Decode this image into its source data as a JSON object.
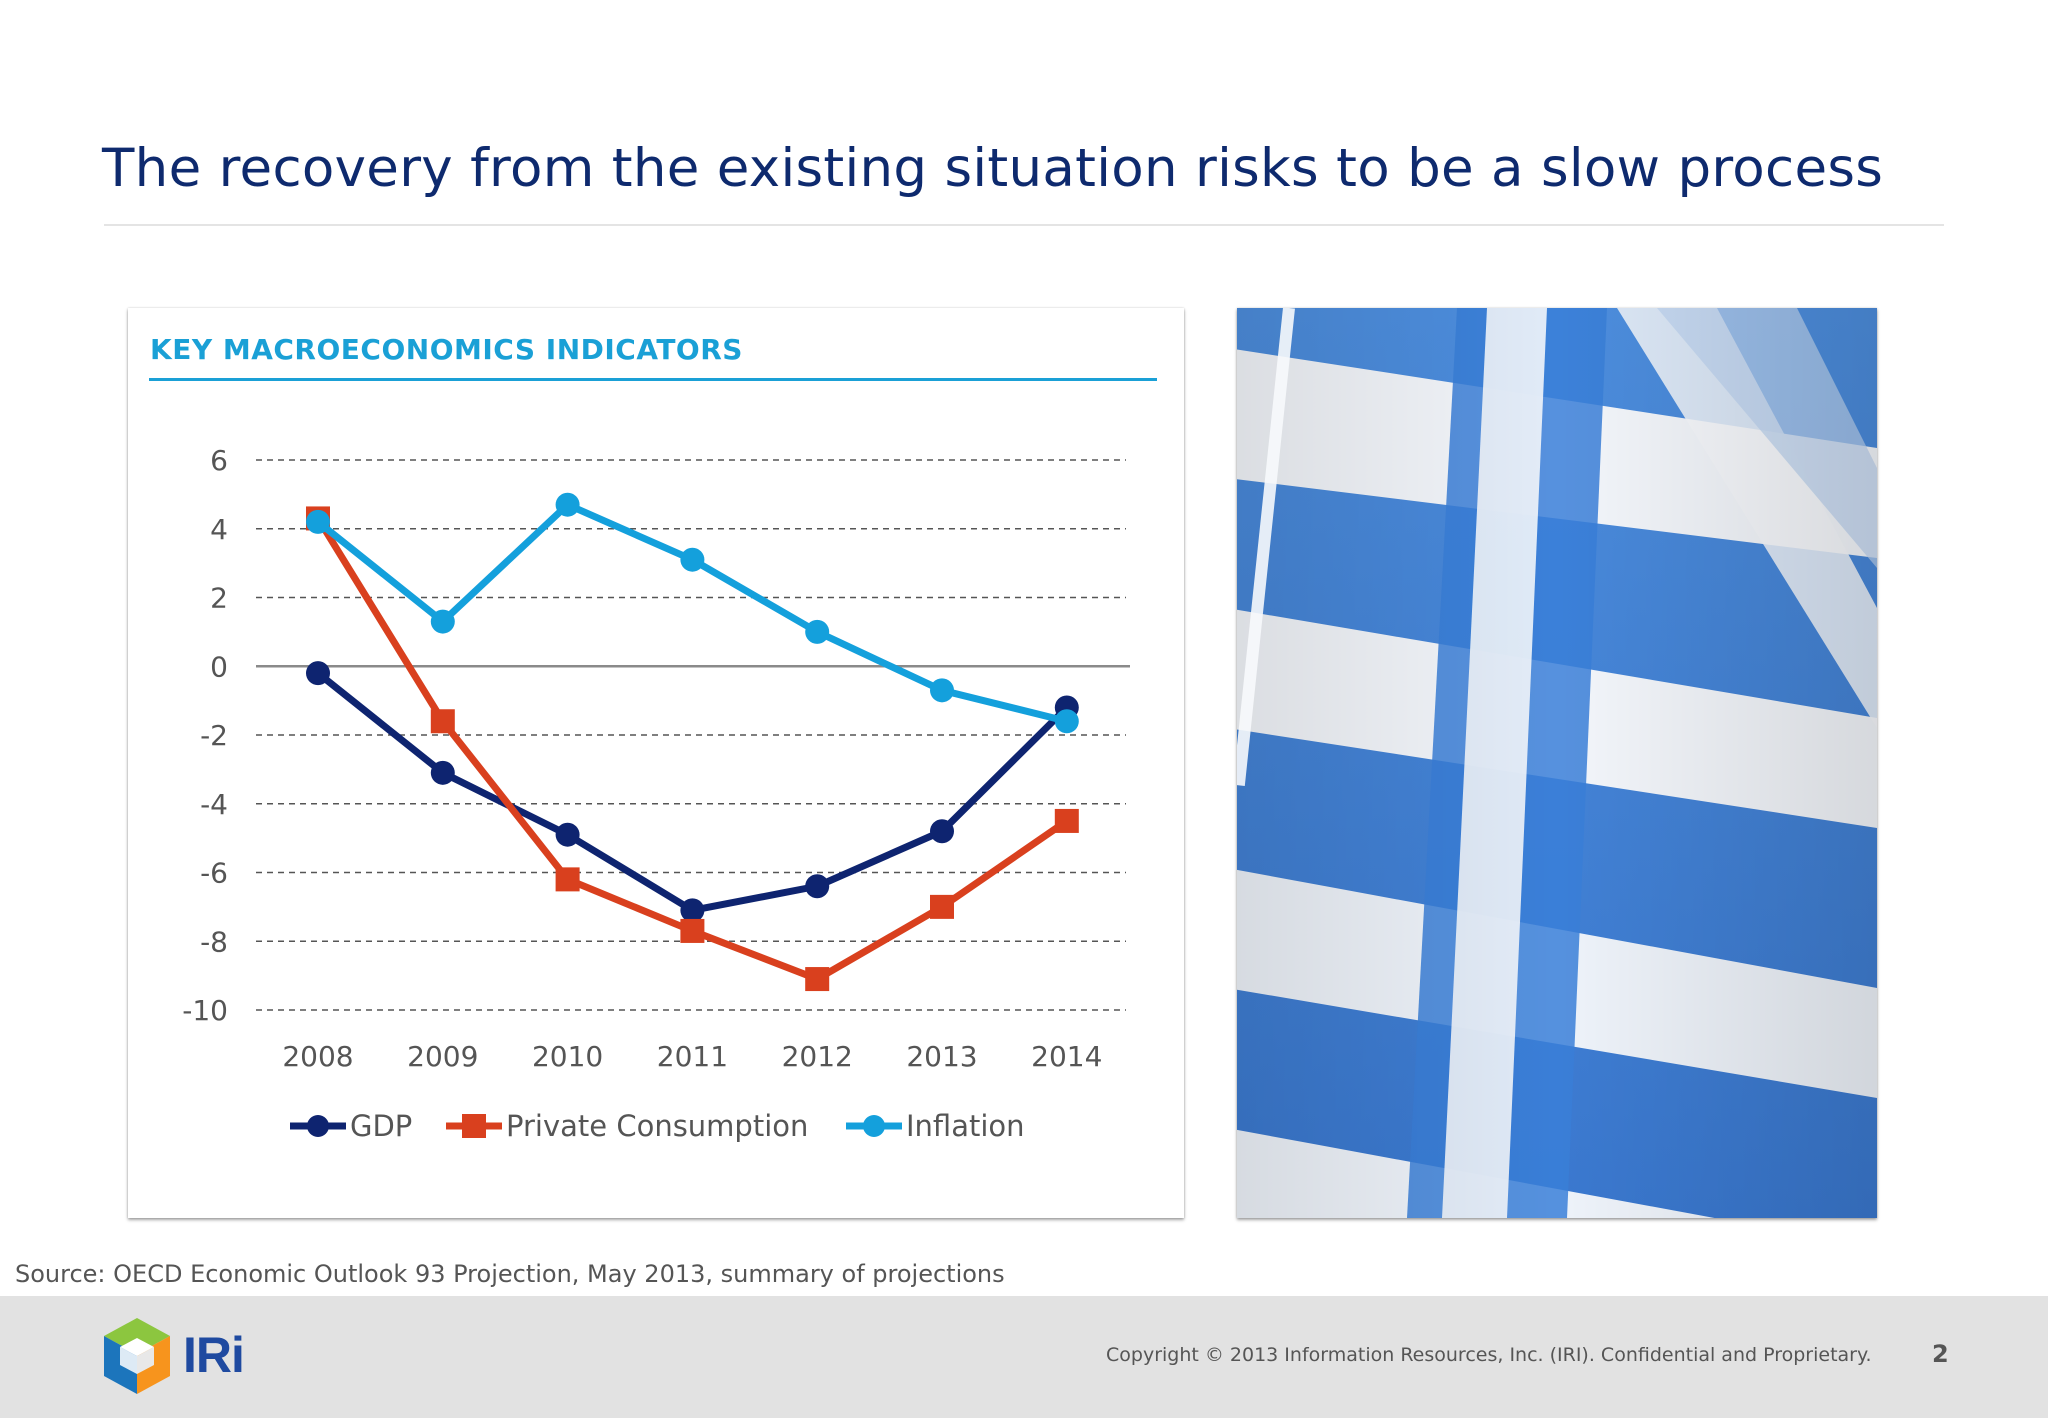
{
  "slide": {
    "title": "The recovery from the existing situation risks to be a slow process",
    "chart_heading": "KEY MACROECONOMICS INDICATORS",
    "source_note": "Source: OECD Economic  Outlook 93 Projection, May 2013, summary of projections"
  },
  "footer": {
    "logo_text": "IRi",
    "copyright": "Copyright © 2013 Information Resources, Inc. (IRI). Confidential and Proprietary.",
    "page_number": "2"
  },
  "chart_data": {
    "type": "line",
    "title": "KEY MACROECONOMICS INDICATORS",
    "xlabel": "",
    "ylabel": "",
    "categories": [
      "2008",
      "2009",
      "2010",
      "2011",
      "2012",
      "2013",
      "2014"
    ],
    "ylim": [
      -10,
      6
    ],
    "yticks": [
      6,
      4,
      2,
      0,
      -2,
      -4,
      -6,
      -8,
      -10
    ],
    "ytick_labels": [
      "6",
      "4",
      "2",
      "0",
      "-2",
      "-4",
      "-6",
      "-8",
      "-10"
    ],
    "grid": "dashed horizontal",
    "legend_position": "bottom",
    "series": [
      {
        "name": "GDP",
        "marker": "circle",
        "color": "#0e2470",
        "values": [
          -0.2,
          -3.1,
          -4.9,
          -7.1,
          -6.4,
          -4.8,
          -1.2
        ]
      },
      {
        "name": "Private Consumption",
        "marker": "square",
        "color": "#d9401e",
        "values": [
          4.3,
          -1.6,
          -6.2,
          -7.7,
          -9.1,
          -7.0,
          -4.5
        ]
      },
      {
        "name": "Inflation",
        "marker": "circle",
        "color": "#14a0dc",
        "values": [
          4.2,
          1.3,
          4.7,
          3.1,
          1.0,
          -0.7,
          -1.6
        ]
      }
    ]
  },
  "colors": {
    "title": "#0e2a6e",
    "heading_accent": "#1aa0d6",
    "flag_blue": "#3a7fd8",
    "flag_white": "#f3f6fb"
  }
}
